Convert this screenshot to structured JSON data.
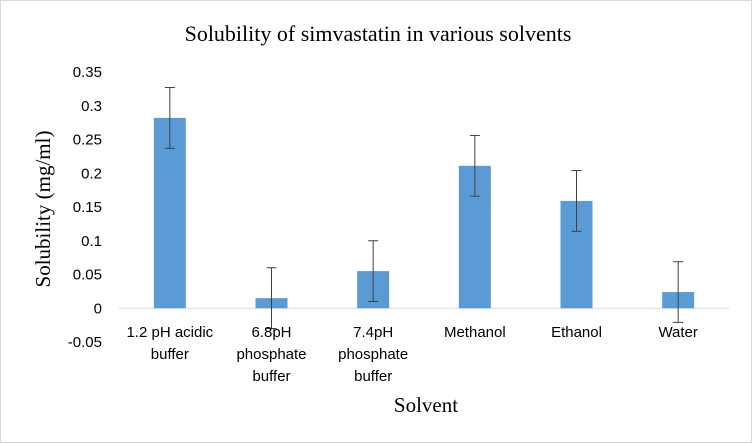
{
  "chart_data": {
    "type": "bar",
    "title": "Solubility of simvastatin in various solvents",
    "xlabel": "Solvent",
    "ylabel": "Solubility (mg/ml)",
    "ylim": [
      -0.05,
      0.35
    ],
    "yticks": [
      "0.35",
      "0.3",
      "0.25",
      "0.2",
      "0.15",
      "0.1",
      "0.05",
      "0",
      "-0.05"
    ],
    "ytick_values": [
      0.35,
      0.3,
      0.25,
      0.2,
      0.15,
      0.1,
      0.05,
      0,
      -0.05
    ],
    "grid": false,
    "categories": [
      [
        "1.2 pH acidic",
        "buffer"
      ],
      [
        "6.8pH",
        "phosphate",
        "buffer"
      ],
      [
        "7.4pH",
        "phosphate",
        "buffer"
      ],
      [
        "Methanol"
      ],
      [
        "Ethanol"
      ],
      [
        "Water"
      ]
    ],
    "values": [
      0.282,
      0.015,
      0.055,
      0.211,
      0.159,
      0.024
    ],
    "errors": [
      0.045,
      0.045,
      0.045,
      0.045,
      0.045,
      0.045
    ],
    "bar_color": "#5b9bd5",
    "error_bar_color": "#404040"
  }
}
